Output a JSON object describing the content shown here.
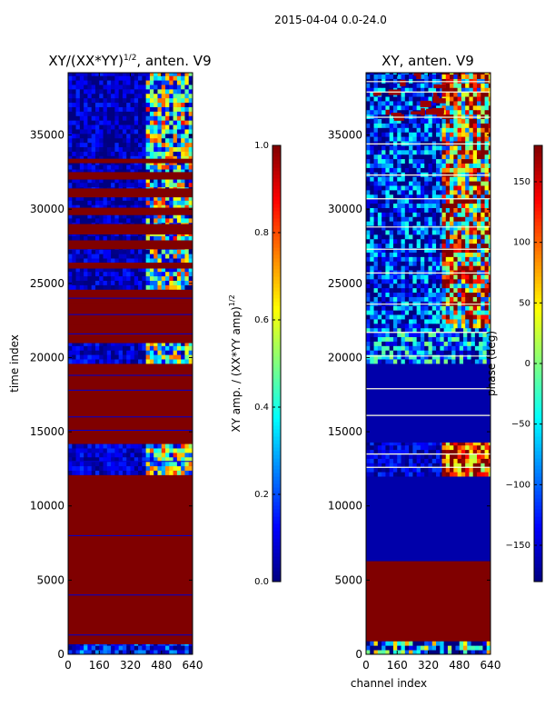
{
  "chart_data": {
    "type": "heatmap",
    "suptitle": "2015-04-04 0.0-24.0",
    "panels": [
      {
        "id": "amp",
        "title": "XY/(XX*YY)",
        "title_exponent": "1/2",
        "title_suffix": ", anten. V9",
        "xlabel": "",
        "ylabel": "time index",
        "xlim": [
          0,
          640
        ],
        "ylim": [
          0,
          39200
        ],
        "xticks": [
          0,
          160,
          320,
          480,
          640
        ],
        "yticks": [
          0,
          5000,
          10000,
          15000,
          20000,
          25000,
          30000,
          35000
        ],
        "background_value": 0.02,
        "regions": [
          {
            "y0": 0,
            "y1": 700,
            "x0": 0,
            "x1": 640,
            "value": 0.12,
            "noise": 0.2
          },
          {
            "y0": 700,
            "y1": 1000,
            "x0": 0,
            "x1": 640,
            "value": 1.0,
            "noise": 0
          },
          {
            "y0": 1000,
            "y1": 12100,
            "x0": 0,
            "x1": 640,
            "value": 1.0,
            "noise": 0
          },
          {
            "y0": 12100,
            "y1": 14200,
            "x0": 0,
            "x1": 400,
            "value": 0.08,
            "noise": 0.1
          },
          {
            "y0": 12100,
            "y1": 14200,
            "x0": 400,
            "x1": 640,
            "value": 0.45,
            "noise": 0.4
          },
          {
            "y0": 14200,
            "y1": 19600,
            "x0": 0,
            "x1": 640,
            "value": 1.0,
            "noise": 0
          },
          {
            "y0": 19600,
            "y1": 21000,
            "x0": 0,
            "x1": 400,
            "value": 0.08,
            "noise": 0.1
          },
          {
            "y0": 19600,
            "y1": 21000,
            "x0": 400,
            "x1": 640,
            "value": 0.4,
            "noise": 0.4
          },
          {
            "y0": 21000,
            "y1": 24600,
            "x0": 0,
            "x1": 640,
            "value": 1.0,
            "noise": 0
          },
          {
            "y0": 24600,
            "y1": 39200,
            "x0": 0,
            "x1": 400,
            "value": 0.05,
            "noise": 0.12
          },
          {
            "y0": 24600,
            "y1": 39200,
            "x0": 400,
            "x1": 640,
            "value": 0.42,
            "noise": 0.45
          }
        ],
        "red_bands": [
          [
            26000,
            26400
          ],
          [
            27300,
            27900
          ],
          [
            28300,
            29000
          ],
          [
            29600,
            30100
          ],
          [
            30800,
            31400
          ],
          [
            32000,
            32500
          ],
          [
            33100,
            33400
          ],
          [
            22200,
            22500
          ],
          [
            23200,
            23600
          ]
        ],
        "blue_lines": [
          1300,
          4000,
          8000,
          13000,
          15100,
          16000,
          17800,
          18800,
          21600,
          22900,
          24000
        ]
      },
      {
        "id": "phase",
        "title": "XY, anten. V9",
        "xlabel": "channel index",
        "ylabel": "",
        "xlim": [
          0,
          640
        ],
        "ylim": [
          0,
          39200
        ],
        "xticks": [
          0,
          160,
          320,
          480,
          640
        ],
        "yticks": [
          0,
          5000,
          10000,
          15000,
          20000,
          25000,
          30000,
          35000
        ],
        "background_value": -165,
        "regions": [
          {
            "y0": 0,
            "y1": 900,
            "x0": 0,
            "x1": 640,
            "value": -120,
            "noise": 200
          },
          {
            "y0": 900,
            "y1": 6300,
            "x0": 0,
            "x1": 640,
            "value": 180,
            "noise": 0
          },
          {
            "y0": 6300,
            "y1": 12000,
            "x0": 0,
            "x1": 640,
            "value": -165,
            "noise": 0
          },
          {
            "y0": 12000,
            "y1": 14300,
            "x0": 0,
            "x1": 390,
            "value": -150,
            "noise": 40
          },
          {
            "y0": 12000,
            "y1": 14300,
            "x0": 390,
            "x1": 640,
            "value": 120,
            "noise": 120
          },
          {
            "y0": 14300,
            "y1": 19600,
            "x0": 0,
            "x1": 640,
            "value": -165,
            "noise": 0
          },
          {
            "y0": 19600,
            "y1": 22000,
            "x0": 0,
            "x1": 640,
            "value": -110,
            "noise": 120
          },
          {
            "y0": 22000,
            "y1": 39200,
            "x0": 0,
            "x1": 390,
            "value": -130,
            "noise": 100
          },
          {
            "y0": 22000,
            "y1": 39200,
            "x0": 390,
            "x1": 640,
            "value": 80,
            "noise": 200
          }
        ],
        "light_lines": [
          12600,
          13500,
          16100,
          17900,
          20100,
          21700,
          23600,
          25700,
          27300,
          28800,
          30700,
          32300,
          34400,
          36200,
          37900,
          38600
        ],
        "red_patch": {
          "y0": 36000,
          "y1": 39200,
          "x0": 0,
          "x1": 400,
          "value": 170
        }
      }
    ],
    "colorbars": [
      {
        "id": "amp_cb",
        "label": "XY amp. / (XX*YY amp)",
        "label_exponent": "1/2",
        "range": [
          0.0,
          1.0
        ],
        "ticks": [
          "0.0",
          "0.2",
          "0.4",
          "0.6",
          "0.8",
          "1.0"
        ],
        "tick_values": [
          0.0,
          0.2,
          0.4,
          0.6,
          0.8,
          1.0
        ]
      },
      {
        "id": "phase_cb",
        "label": "phase (deg)",
        "range": [
          -180,
          180
        ],
        "ticks": [
          "−150",
          "−100",
          "−50",
          "0",
          "50",
          "100",
          "150"
        ],
        "tick_values": [
          -150,
          -100,
          -50,
          0,
          50,
          100,
          150
        ]
      }
    ],
    "colormap": "jet"
  }
}
